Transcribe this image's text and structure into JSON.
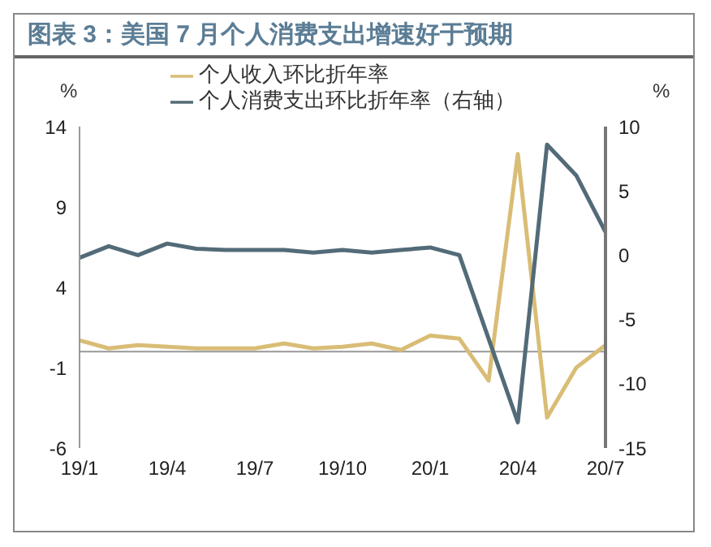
{
  "chart_data": {
    "type": "line",
    "title": "图表 3：美国 7 月个人消费支出增速好于预期",
    "ylabel": "%",
    "y2label": "%",
    "categories": [
      "19/1",
      null,
      null,
      "19/4",
      null,
      null,
      "19/7",
      null,
      null,
      "19/10",
      null,
      null,
      "20/1",
      null,
      null,
      "20/4",
      null,
      null,
      "20/7"
    ],
    "series": [
      {
        "name": "个人收入环比折年率",
        "color": "#d9bd76",
        "values": [
          0.7,
          0.2,
          0.4,
          0.3,
          0.2,
          0.2,
          0.2,
          0.5,
          0.2,
          0.3,
          0.5,
          0.1,
          1.0,
          0.8,
          -1.8,
          12.3,
          -4.1,
          -1.0,
          0.4
        ]
      },
      {
        "name": "个人消费支出环比折年率（右轴）",
        "color": "#536b78",
        "axis": "y2",
        "values": [
          -0.2,
          0.7,
          0.0,
          0.9,
          0.5,
          0.4,
          0.4,
          0.4,
          0.2,
          0.4,
          0.2,
          0.4,
          0.6,
          0,
          -6.5,
          -13.0,
          8.6,
          6.2,
          1.8
        ]
      }
    ],
    "ylim": [
      -6,
      14
    ],
    "yticks": [
      -6,
      -1,
      4,
      9,
      14
    ],
    "y2lim": [
      -15,
      10
    ],
    "y2ticks": [
      -15,
      -10,
      -5,
      0,
      5,
      10
    ],
    "legend": "top",
    "grid": false,
    "marker": "none",
    "line_style": "solid"
  }
}
